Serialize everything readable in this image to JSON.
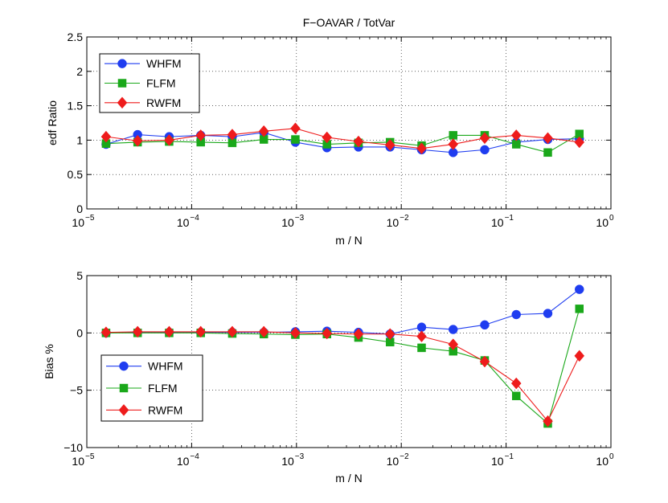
{
  "chart_data": [
    {
      "type": "line",
      "title": "F−OAVAR / TotVar",
      "xlabel": "m / N",
      "ylabel": "edf Ratio",
      "xscale": "log",
      "xlim": [
        1e-05,
        1
      ],
      "ylim": [
        0,
        2.5
      ],
      "grid": true,
      "legend_position": "top-left",
      "x_ticks": [
        {
          "base": "10",
          "exp": "−5"
        },
        {
          "base": "10",
          "exp": "−4"
        },
        {
          "base": "10",
          "exp": "−3"
        },
        {
          "base": "10",
          "exp": "−2"
        },
        {
          "base": "10",
          "exp": "−1"
        },
        {
          "base": "10",
          "exp": "0"
        }
      ],
      "y_ticks": [
        "0",
        "0.5",
        "1",
        "1.5",
        "2",
        "2.5"
      ],
      "x": [
        1.526e-05,
        3.052e-05,
        6.104e-05,
        0.0001221,
        0.0002441,
        0.0004883,
        0.0009766,
        0.001953,
        0.003906,
        0.007813,
        0.01563,
        0.03125,
        0.0625,
        0.125,
        0.25,
        0.5
      ],
      "series": [
        {
          "name": "WHFM",
          "color": "#1f3df0",
          "marker": "circle",
          "values": [
            0.94,
            1.08,
            1.05,
            1.07,
            1.05,
            1.11,
            0.97,
            0.89,
            0.9,
            0.9,
            0.86,
            0.82,
            0.86,
            0.97,
            1.01,
            1.02
          ]
        },
        {
          "name": "FLFM",
          "color": "#1aa81a",
          "marker": "square",
          "values": [
            0.95,
            0.97,
            0.98,
            0.97,
            0.96,
            1.01,
            1.01,
            0.94,
            0.96,
            0.97,
            0.92,
            1.07,
            1.07,
            0.94,
            0.82,
            1.09
          ]
        },
        {
          "name": "RWFM",
          "color": "#ee1c1c",
          "marker": "diamond",
          "values": [
            1.05,
            0.99,
            1.0,
            1.07,
            1.08,
            1.13,
            1.17,
            1.04,
            0.98,
            0.93,
            0.88,
            0.94,
            1.03,
            1.07,
            1.03,
            0.97
          ]
        }
      ]
    },
    {
      "type": "line",
      "title": "",
      "xlabel": "m / N",
      "ylabel": "Bias %",
      "xscale": "log",
      "xlim": [
        1e-05,
        1
      ],
      "ylim": [
        -10,
        5
      ],
      "grid": true,
      "legend_position": "bottom-left",
      "x_ticks": [
        {
          "base": "10",
          "exp": "−5"
        },
        {
          "base": "10",
          "exp": "−4"
        },
        {
          "base": "10",
          "exp": "−3"
        },
        {
          "base": "10",
          "exp": "−2"
        },
        {
          "base": "10",
          "exp": "−1"
        },
        {
          "base": "10",
          "exp": "0"
        }
      ],
      "y_ticks": [
        "−10",
        "−5",
        "0",
        "5"
      ],
      "x": [
        1.526e-05,
        3.052e-05,
        6.104e-05,
        0.0001221,
        0.0002441,
        0.0004883,
        0.0009766,
        0.001953,
        0.003906,
        0.007813,
        0.01563,
        0.03125,
        0.0625,
        0.125,
        0.25,
        0.5
      ],
      "series": [
        {
          "name": "WHFM",
          "color": "#1f3df0",
          "marker": "circle",
          "values": [
            0.0,
            0.05,
            0.05,
            0.05,
            0.05,
            0.05,
            0.1,
            0.15,
            0.05,
            -0.1,
            0.5,
            0.3,
            0.7,
            1.6,
            1.7,
            3.8
          ]
        },
        {
          "name": "FLFM",
          "color": "#1aa81a",
          "marker": "square",
          "values": [
            0.0,
            0.0,
            0.0,
            0.0,
            -0.05,
            -0.1,
            -0.15,
            -0.1,
            -0.4,
            -0.8,
            -1.3,
            -1.6,
            -2.4,
            -5.5,
            -7.9,
            2.1
          ]
        },
        {
          "name": "RWFM",
          "color": "#ee1c1c",
          "marker": "diamond",
          "values": [
            0.05,
            0.1,
            0.1,
            0.1,
            0.1,
            0.1,
            0.0,
            -0.05,
            -0.1,
            -0.1,
            -0.3,
            -1.0,
            -2.5,
            -4.4,
            -7.7,
            -2.0
          ]
        }
      ]
    }
  ]
}
